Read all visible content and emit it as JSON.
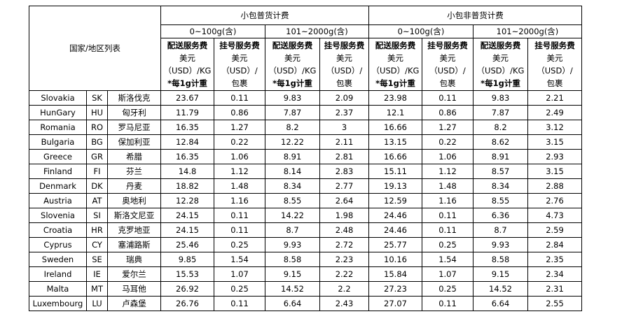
{
  "header": {
    "country_list_label": "国家/地区列表",
    "groups": [
      "小包普货计费",
      "小包非普货计费"
    ],
    "ranges": [
      "0~100g(含)",
      "101~2000g(含)",
      "0~100g(含)",
      "101~2000g(含)"
    ],
    "delivery_fee": [
      "配送服务费",
      "美元",
      "（USD）/KG",
      "*每1g计重"
    ],
    "registration_fee": [
      "挂号服务费",
      "美元",
      "（USD）/",
      "包裹"
    ]
  },
  "rows": [
    {
      "country": "Slovakia",
      "code": "SK",
      "cn": "斯洛伐克",
      "v": [
        "23.67",
        "0.11",
        "9.83",
        "2.09",
        "23.98",
        "0.11",
        "9.83",
        "2.21"
      ]
    },
    {
      "country": "HunGary",
      "code": "HU",
      "cn": "匈牙利",
      "v": [
        "11.79",
        "0.86",
        "7.87",
        "2.37",
        "12.1",
        "0.86",
        "7.87",
        "2.49"
      ]
    },
    {
      "country": "Romania",
      "code": "RO",
      "cn": "罗马尼亚",
      "v": [
        "16.35",
        "1.27",
        "8.2",
        "3",
        "16.66",
        "1.27",
        "8.2",
        "3.12"
      ]
    },
    {
      "country": "Bulgaria",
      "code": "BG",
      "cn": "保加利亚",
      "v": [
        "12.84",
        "0.22",
        "12.22",
        "2.11",
        "13.15",
        "0.22",
        "8.62",
        "3.15"
      ]
    },
    {
      "country": "Greece",
      "code": "GR",
      "cn": "希腊",
      "v": [
        "16.35",
        "1.06",
        "8.91",
        "2.81",
        "16.66",
        "1.06",
        "8.91",
        "2.93"
      ]
    },
    {
      "country": "Finland",
      "code": "FI",
      "cn": "芬兰",
      "v": [
        "14.8",
        "1.12",
        "8.14",
        "2.83",
        "15.11",
        "1.12",
        "8.57",
        "3.15"
      ]
    },
    {
      "country": "Denmark",
      "code": "DK",
      "cn": "丹麦",
      "v": [
        "18.82",
        "1.48",
        "8.34",
        "2.77",
        "19.13",
        "1.48",
        "8.34",
        "2.88"
      ]
    },
    {
      "country": "Austria",
      "code": "AT",
      "cn": "奥地利",
      "v": [
        "12.28",
        "1.16",
        "8.55",
        "2.64",
        "12.59",
        "1.16",
        "8.55",
        "2.76"
      ]
    },
    {
      "country": "Slovenia",
      "code": "SI",
      "cn": "斯洛文尼亚",
      "v": [
        "24.15",
        "0.11",
        "14.22",
        "1.98",
        "24.46",
        "0.11",
        "6.36",
        "4.73"
      ]
    },
    {
      "country": "Croatia",
      "code": "HR",
      "cn": "克罗地亚",
      "v": [
        "24.15",
        "0.11",
        "8.7",
        "2.48",
        "24.46",
        "0.11",
        "8.7",
        "2.59"
      ]
    },
    {
      "country": "Cyprus",
      "code": "CY",
      "cn": "塞浦路斯",
      "v": [
        "25.46",
        "0.25",
        "9.93",
        "2.72",
        "25.77",
        "0.25",
        "9.93",
        "2.84"
      ]
    },
    {
      "country": "Sweden",
      "code": "SE",
      "cn": "瑞典",
      "v": [
        "9.85",
        "1.54",
        "8.58",
        "2.23",
        "10.16",
        "1.54",
        "8.58",
        "2.35"
      ]
    },
    {
      "country": "Ireland",
      "code": "IE",
      "cn": "爱尔兰",
      "v": [
        "15.53",
        "1.07",
        "9.15",
        "2.22",
        "15.84",
        "1.07",
        "9.15",
        "2.34"
      ]
    },
    {
      "country": "Malta",
      "code": "MT",
      "cn": "马耳他",
      "v": [
        "26.92",
        "0.25",
        "14.52",
        "2.2",
        "27.23",
        "0.25",
        "14.52",
        "2.31"
      ]
    },
    {
      "country": "Luxembourg",
      "code": "LU",
      "cn": "卢森堡",
      "v": [
        "26.76",
        "0.11",
        "6.64",
        "2.43",
        "27.07",
        "0.11",
        "6.64",
        "2.55"
      ]
    }
  ]
}
